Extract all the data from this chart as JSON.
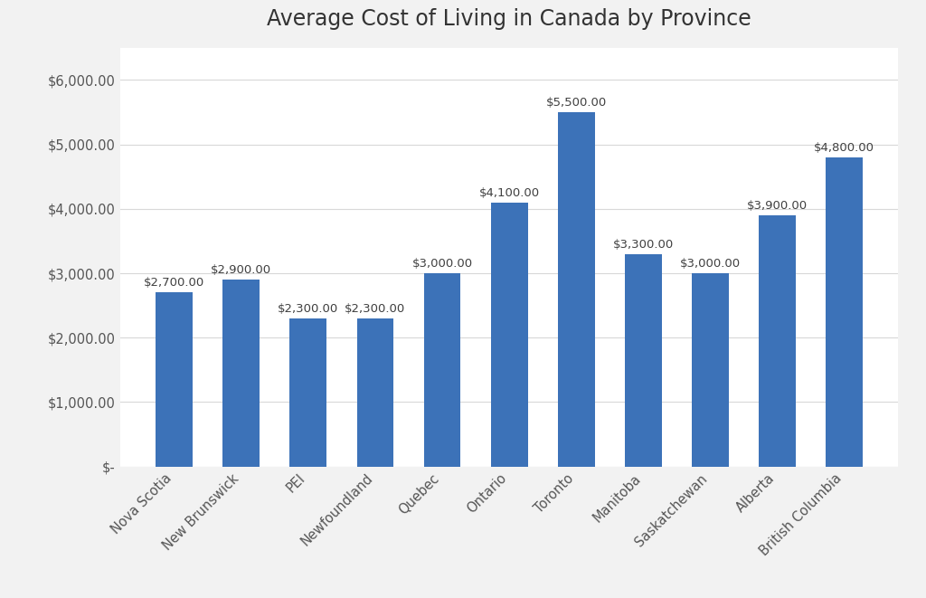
{
  "title": "Average Cost of Living in Canada by Province",
  "categories": [
    "Nova Scotia",
    "New Brunswick",
    "PEI",
    "Newfoundland",
    "Quebec",
    "Ontario",
    "Toronto",
    "Manitoba",
    "Saskatchewan",
    "Alberta",
    "British Columbia"
  ],
  "values": [
    2700,
    2900,
    2300,
    2300,
    3000,
    4100,
    5500,
    3300,
    3000,
    3900,
    4800
  ],
  "bar_color": "#3C72B8",
  "background_color": "#F2F2F2",
  "plot_bg_color": "#FFFFFF",
  "ylim": [
    0,
    6500
  ],
  "yticks": [
    0,
    1000,
    2000,
    3000,
    4000,
    5000,
    6000
  ],
  "ytick_labels": [
    "$-",
    "$1,000.00",
    "$2,000.00",
    "$3,000.00",
    "$4,000.00",
    "$5,000.00",
    "$6,000.00"
  ],
  "title_fontsize": 17,
  "label_fontsize": 9.5,
  "tick_fontsize": 10.5,
  "grid_color": "#D8D8D8",
  "annotation_color": "#404040",
  "bar_width": 0.55
}
